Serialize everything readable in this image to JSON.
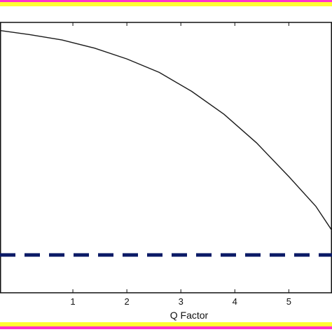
{
  "colors": {
    "frame_magenta": "#ff33cc",
    "frame_yellow": "#ffff33",
    "curve": "#1a1a1a",
    "reference_line": "#0a1a66",
    "axis": "#111111"
  },
  "chart_data": {
    "type": "line",
    "xlabel": "Q Factor",
    "ylabel": "",
    "title": "",
    "xlim": [
      -0.35,
      5.8
    ],
    "ylim": [
      0,
      1
    ],
    "x_ticks": [
      1,
      2,
      3,
      4,
      5
    ],
    "x_tick_labels": [
      "1",
      "2",
      "3",
      "4",
      "5"
    ],
    "grid": false,
    "series": [
      {
        "style": "solid",
        "x": [
          -0.35,
          0.2,
          0.8,
          1.4,
          2.0,
          2.6,
          3.2,
          3.8,
          4.4,
          5.0,
          5.5,
          5.8
        ],
        "y": [
          0.97,
          0.955,
          0.935,
          0.905,
          0.865,
          0.815,
          0.745,
          0.66,
          0.555,
          0.43,
          0.32,
          0.23
        ]
      },
      {
        "style": "dashed",
        "x": [
          -0.35,
          5.8
        ],
        "y": [
          0.14,
          0.14
        ]
      }
    ]
  }
}
